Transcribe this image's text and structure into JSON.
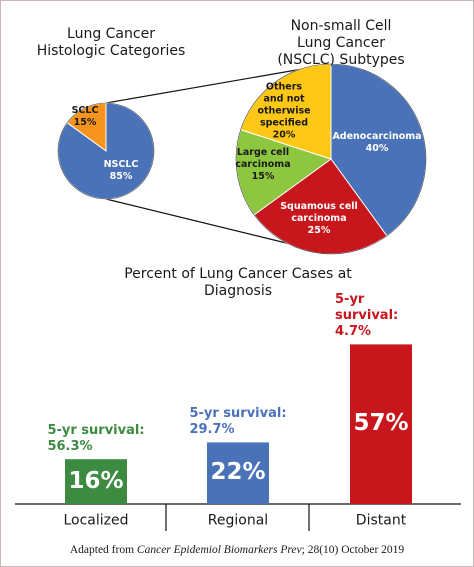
{
  "chart_data": [
    {
      "type": "pie",
      "title": "Lung Cancer\nHistologic Categories",
      "categories": [
        "SCLC",
        "NSCLC"
      ],
      "values": [
        15,
        85
      ],
      "value_labels": [
        "15%",
        "85%"
      ],
      "colors": [
        "#f7941d",
        "#4a72b8"
      ]
    },
    {
      "type": "pie",
      "title": "Non-small Cell Lung Cancer\n(NSCLC) Subtypes",
      "categories": [
        "Adenocarcinoma",
        "Squamous cell\ncarcinoma",
        "Large cell\ncarcinoma",
        "Others\nand not\notherwise\nspecified"
      ],
      "values": [
        40,
        25,
        15,
        20
      ],
      "value_labels": [
        "40%",
        "25%",
        "15%",
        "20%"
      ],
      "colors": [
        "#4a72b8",
        "#c8161d",
        "#8dc63f",
        "#fdc716"
      ]
    },
    {
      "type": "bar",
      "title": "Percent of Lung Cancer Cases at Diagnosis",
      "categories": [
        "Localized",
        "Regional",
        "Distant"
      ],
      "values": [
        16,
        22,
        57
      ],
      "value_labels": [
        "16%",
        "22%",
        "57%"
      ],
      "colors": [
        "#3d8b41",
        "#4a72b8",
        "#c8161d"
      ],
      "ylim": [
        0,
        60
      ],
      "annotations": [
        {
          "label": "5-yr survival:",
          "value": "56.3%"
        },
        {
          "label": "5-yr survival:",
          "value": "29.7%"
        },
        {
          "label": "5-yr survival:",
          "value": "4.7%"
        }
      ]
    }
  ],
  "source": {
    "prefix": "Adapted from",
    "journal": "Cancer Epidemiol Biomarkers Prev",
    "citation": "; 28(10) October 2019"
  }
}
